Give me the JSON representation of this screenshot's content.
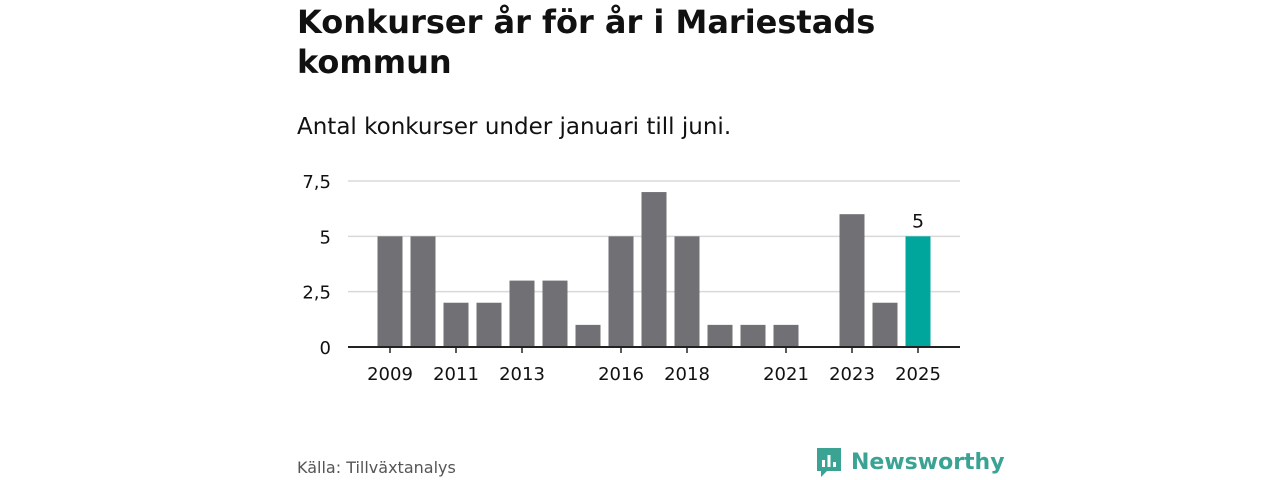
{
  "header": {
    "title": "Konkurser år för år i Mariestads kommun",
    "subtitle": "Antal konkurser under januari till juni."
  },
  "footer": {
    "source": "Källa: Tillväxtanalys",
    "brand": "Newsworthy"
  },
  "colors": {
    "bar": "#707075",
    "highlight": "#00a69c",
    "grid": "#d9d9d9",
    "axis": "#222222",
    "brand": "#3aa394"
  },
  "chart_data": {
    "type": "bar",
    "categories": [
      "2009",
      "2010",
      "2011",
      "2012",
      "2013",
      "2014",
      "2015",
      "2016",
      "2017",
      "2018",
      "2019",
      "2020",
      "2021",
      "2022",
      "2023",
      "2024",
      "2025"
    ],
    "values": [
      5,
      5,
      2,
      2,
      3,
      3,
      1,
      5,
      7,
      5,
      1,
      1,
      1,
      0,
      6,
      2,
      5
    ],
    "highlight_category": "2025",
    "data_labels": [
      {
        "category": "2025",
        "text": "5"
      }
    ],
    "xtick_labels": [
      "2009",
      "2011",
      "2013",
      "2016",
      "2018",
      "2021",
      "2023",
      "2025"
    ],
    "ytick_values": [
      0,
      2.5,
      5,
      7.5
    ],
    "ytick_labels": [
      "0",
      "2,5",
      "5",
      "7,5"
    ],
    "ylim": [
      0,
      7.5
    ],
    "grid": true,
    "legend": "none",
    "title": "Konkurser år för år i Mariestads kommun",
    "xlabel": "",
    "ylabel": ""
  }
}
